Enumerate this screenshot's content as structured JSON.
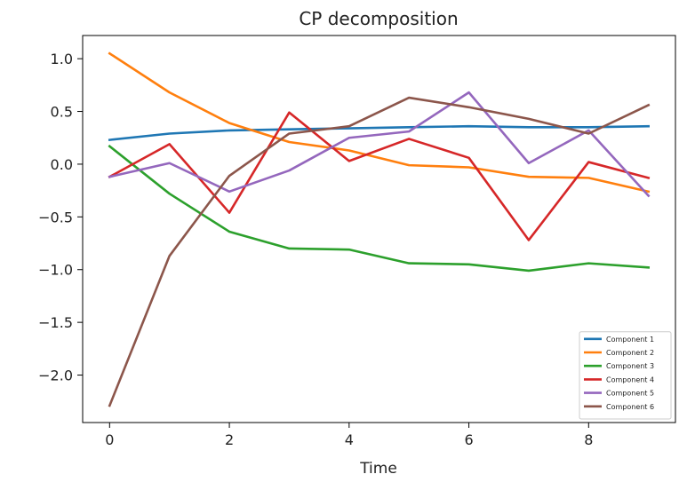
{
  "chart_data": {
    "type": "line",
    "title": "CP decomposition",
    "xlabel": "Time",
    "ylabel": "",
    "x": [
      0,
      1,
      2,
      3,
      4,
      5,
      6,
      7,
      8,
      9
    ],
    "xlim": [
      -0.45,
      9.45
    ],
    "ylim": [
      -2.45,
      1.22
    ],
    "xticks": [
      0,
      2,
      4,
      6,
      8
    ],
    "yticks": [
      1.0,
      0.5,
      0.0,
      -0.5,
      -1.0,
      -1.5,
      -2.0
    ],
    "ytick_labels": [
      "1.0",
      "0.5",
      "0.0",
      "−0.5",
      "−1.0",
      "−1.5",
      "−2.0"
    ],
    "grid": false,
    "legend_position": "lower-right",
    "series": [
      {
        "name": "Component 1",
        "color": "#1f77b4",
        "values": [
          0.23,
          0.29,
          0.32,
          0.33,
          0.34,
          0.35,
          0.36,
          0.35,
          0.35,
          0.36
        ]
      },
      {
        "name": "Component 2",
        "color": "#ff7f0e",
        "values": [
          1.05,
          0.68,
          0.39,
          0.21,
          0.13,
          -0.01,
          -0.03,
          -0.12,
          -0.13,
          -0.26
        ]
      },
      {
        "name": "Component 3",
        "color": "#2ca02c",
        "values": [
          0.17,
          -0.28,
          -0.64,
          -0.8,
          -0.81,
          -0.94,
          -0.95,
          -1.01,
          -0.94,
          -0.98
        ]
      },
      {
        "name": "Component 4",
        "color": "#d62728",
        "values": [
          -0.12,
          0.19,
          -0.46,
          0.49,
          0.03,
          0.24,
          0.06,
          -0.72,
          0.02,
          -0.13
        ]
      },
      {
        "name": "Component 5",
        "color": "#9467bd",
        "values": [
          -0.12,
          0.01,
          -0.26,
          -0.06,
          0.25,
          0.31,
          0.68,
          0.01,
          0.32,
          -0.3
        ]
      },
      {
        "name": "Component 6",
        "color": "#8c564b",
        "values": [
          -2.29,
          -0.87,
          -0.11,
          0.29,
          0.36,
          0.63,
          0.54,
          0.43,
          0.29,
          0.56
        ]
      }
    ]
  }
}
